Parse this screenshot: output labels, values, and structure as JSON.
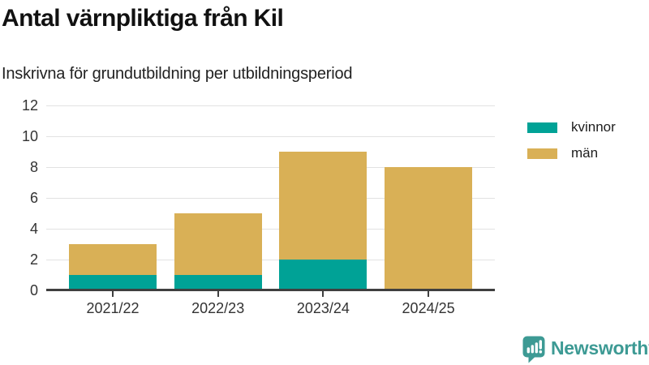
{
  "header": {
    "title": "Antal värnpliktiga från Kil",
    "subtitle": "Inskrivna för grundutbildning per utbildningsperiod"
  },
  "chart_data": {
    "type": "bar",
    "stacked": true,
    "title": "Antal värnpliktiga från Kil",
    "subtitle": "Inskrivna för grundutbildning per utbildningsperiod",
    "categories": [
      "2021/22",
      "2022/23",
      "2023/24",
      "2024/25"
    ],
    "series": [
      {
        "name": "kvinnor",
        "color": "#00a296",
        "values": [
          1,
          1,
          2,
          0
        ]
      },
      {
        "name": "män",
        "color": "#d9b056",
        "values": [
          2,
          4,
          7,
          8
        ]
      }
    ],
    "totals": [
      3,
      5,
      9,
      8
    ],
    "xlabel": "",
    "ylabel": "",
    "ylim": [
      0,
      12
    ],
    "yticks": [
      0,
      2,
      4,
      6,
      8,
      10,
      12
    ],
    "grid": true,
    "legend_position": "right"
  },
  "colors": {
    "axis": "#3f3f3f",
    "gridline": "#e2e2e2",
    "tick_label": "#333333"
  },
  "branding": {
    "logo_text": "Newsworthy",
    "logo_color": "#3d9a94",
    "logo_icon": "bar-chart-speech-bubble-icon"
  }
}
